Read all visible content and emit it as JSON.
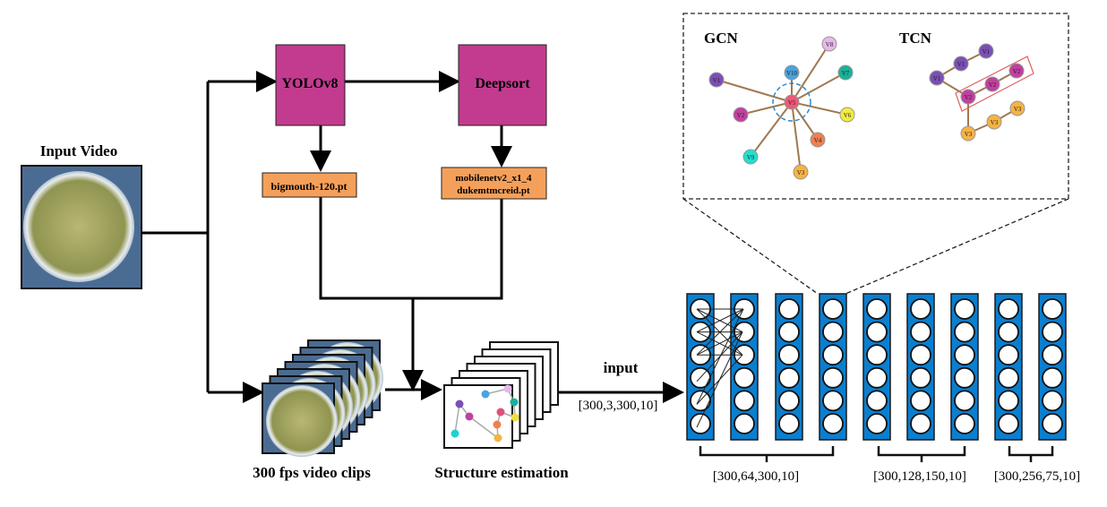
{
  "input_video": {
    "label": "Input Video"
  },
  "yolo": {
    "label": "YOLOv8",
    "weights": "bigmouth-120.pt"
  },
  "deepsort": {
    "label": "Deepsort",
    "weights_line1": "mobilenetv2_x1_4",
    "weights_line2": "dukemtmcreid.pt"
  },
  "clips": {
    "label": "300 fps video clips"
  },
  "structure": {
    "label": "Structure estimation"
  },
  "input_arrow": {
    "label": "input",
    "shape": "[300,3,300,10]"
  },
  "gcn": {
    "title": "GCN",
    "nodes": [
      "V1",
      "V2",
      "V3",
      "V4",
      "V5",
      "V6",
      "V7",
      "V8",
      "V9",
      "V10"
    ]
  },
  "tcn": {
    "title": "TCN",
    "nodes": [
      "V1",
      "V1",
      "V1",
      "V2",
      "V2",
      "V2",
      "V3",
      "V3",
      "V3"
    ]
  },
  "network": {
    "groups": [
      "[300,64,300,10]",
      "[300,128,150,10]",
      "[300,256,75,10]"
    ]
  },
  "colors": {
    "block": "#c23b8f",
    "weights": "#f5a05a",
    "layer": "#0a7fd0"
  }
}
